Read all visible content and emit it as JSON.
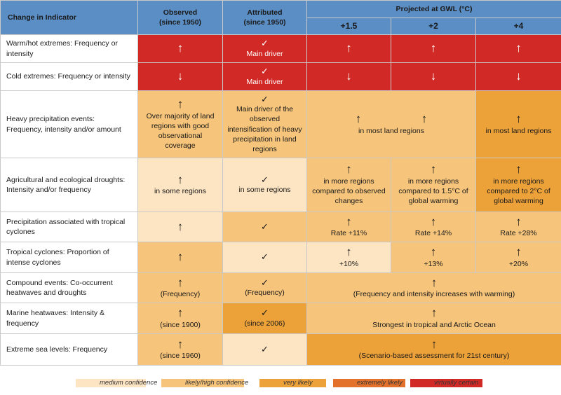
{
  "header": {
    "indicator": "Change in Indicator",
    "observed": "Observed\n(since 1950)",
    "observed_line1": "Observed",
    "observed_line2": "(since 1950)",
    "attributed_line1": "Attributed",
    "attributed_line2": "(since 1950)",
    "projected": "Projected at GWL (°C)",
    "gwl": [
      "+1.5",
      "+2",
      "+4"
    ]
  },
  "colors": {
    "virtually_certain": "#d12a26",
    "extremely_likely": "#e3712c",
    "very_likely": "#eda239",
    "likely_high": "#f6c47a",
    "medium": "#fde4c2",
    "header": "#5a8ec4"
  },
  "rows": {
    "warm": {
      "label": "Warm/hot extremes: Frequency or intensity",
      "obs_icon": "arrow-up-icon",
      "obs_sym": "↑",
      "att_sym": "✓",
      "att_text": "Main driver",
      "p15_sym": "↑",
      "p2_sym": "↑",
      "p4_sym": "↑"
    },
    "cold": {
      "label": "Cold extremes: Frequency or intensity",
      "obs_sym": "↓",
      "att_sym": "✓",
      "att_text": "Main driver",
      "p15_sym": "↓",
      "p2_sym": "↓",
      "p4_sym": "↓"
    },
    "heavy": {
      "label": "Heavy precipitation events: Frequency, intensity and/or amount",
      "obs_sym": "↑",
      "obs_text": "Over majority of land regions with good observational coverage",
      "att_sym": "✓",
      "att_text": "Main driver of the observed intensification of heavy precipitation in land regions",
      "p15_sym": "↑",
      "p2_sym": "↑",
      "p15_2_text": "in most land regions",
      "p4_sym": "↑",
      "p4_text": "in most land regions"
    },
    "drought": {
      "label": "Agricultural and ecological droughts: Intensity and/or frequency",
      "obs_sym": "↑",
      "obs_text": "in some regions",
      "att_sym": "✓",
      "att_text": "in some regions",
      "p15_sym": "↑",
      "p15_text": "in more regions compared to observed changes",
      "p2_sym": "↑",
      "p2_text": "in more regions compared to 1.5°C of global warming",
      "p4_sym": "↑",
      "p4_text": "in more regions compared to 2°C of global warming"
    },
    "tcprecip": {
      "label": "Precipitation associated with tropical cyclones",
      "obs_sym": "↑",
      "att_sym": "✓",
      "p15_sym": "↑",
      "p15_text": "Rate +11%",
      "p2_sym": "↑",
      "p2_text": "Rate +14%",
      "p4_sym": "↑",
      "p4_text": "Rate +28%"
    },
    "tc": {
      "label": "Tropical cyclones: Proportion of intense cyclones",
      "obs_sym": "↑",
      "att_sym": "✓",
      "p15_sym": "↑",
      "p15_text": "+10%",
      "p2_sym": "↑",
      "p2_text": "+13%",
      "p4_sym": "↑",
      "p4_text": "+20%"
    },
    "compound": {
      "label": "Compound events: Co-occurrent heatwaves and droughts",
      "obs_sym": "↑",
      "obs_text": "(Frequency)",
      "att_sym": "✓",
      "att_text": "(Frequency)",
      "proj_sym": "↑",
      "proj_text": "(Frequency and intensity increases with warming)"
    },
    "marine": {
      "label": "Marine heatwaves: Intensity & frequency",
      "obs_sym": "↑",
      "obs_text": "(since 1900)",
      "att_sym": "✓",
      "att_text": "(since 2006)",
      "proj_sym": "↑",
      "proj_text": "Strongest in tropical and Arctic Ocean"
    },
    "sealevel": {
      "label": "Extreme sea levels: Frequency",
      "obs_sym": "↑",
      "obs_text": "(since 1960)",
      "att_sym": "✓",
      "proj_sym": "↑",
      "proj_text": "(Scenario-based assessment for 21st century)"
    }
  },
  "legend": [
    {
      "label": "medium confidence",
      "color": "#fde4c2"
    },
    {
      "label": "likely/high confidence",
      "color": "#f6c47a"
    },
    {
      "label": "very likely",
      "color": "#eda239"
    },
    {
      "label": "extremely likely",
      "color": "#e3712c"
    },
    {
      "label": "virtually certain",
      "color": "#d12a26"
    }
  ]
}
